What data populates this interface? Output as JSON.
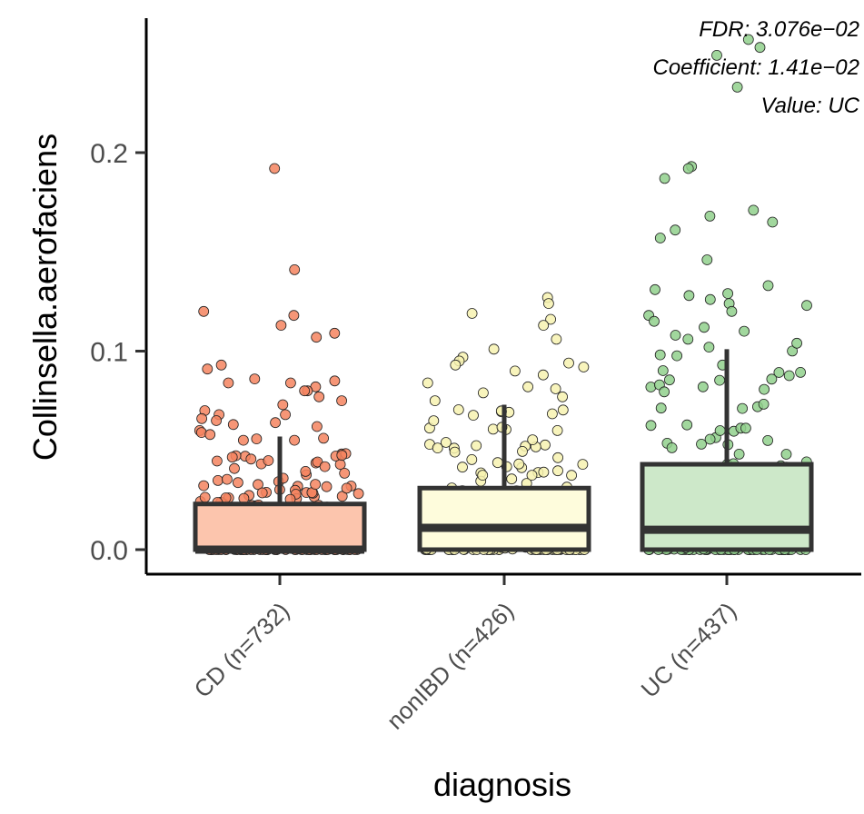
{
  "chart_data": {
    "type": "boxplot",
    "title": "",
    "xlabel": "diagnosis",
    "ylabel": "Collinsella.aerofaciens",
    "ylim": [
      -0.012,
      0.268
    ],
    "yticks": [
      0.0,
      0.1,
      0.2
    ],
    "ytick_labels": [
      "0.0",
      "0.1",
      "0.2"
    ],
    "annotations": [
      {
        "label": "FDR: 3.076e−02"
      },
      {
        "label": "Coefficient: 1.41e−02"
      },
      {
        "label": "Value: UC"
      }
    ],
    "groups": [
      {
        "name": "CD (n=732)",
        "fill": "#fcc5ad",
        "point_color": "#f4845f",
        "stats": {
          "min": 0.0,
          "q1": 0.0,
          "median": 0.0,
          "q3": 0.023,
          "max": 0.057
        },
        "outliers": [
          0.192,
          0.141,
          0.12,
          0.118,
          0.113,
          0.109,
          0.107,
          0.093,
          0.091,
          0.086,
          0.085,
          0.084,
          0.084,
          0.082,
          0.08,
          0.08,
          0.077,
          0.075,
          0.073,
          0.07,
          0.068,
          0.068,
          0.066,
          0.065,
          0.064,
          0.063,
          0.062,
          0.06,
          0.059,
          0.058
        ],
        "n_points": 300
      },
      {
        "name": "nonIBD (n=426)",
        "fill": "#fefcdc",
        "point_color": "#f7f2b0",
        "stats": {
          "min": 0.0,
          "q1": 0.0,
          "median": 0.011,
          "q3": 0.031,
          "max": 0.073
        },
        "outliers": [
          0.127,
          0.124,
          0.119,
          0.116,
          0.113,
          0.106,
          0.101,
          0.097,
          0.095,
          0.094,
          0.093,
          0.092,
          0.09,
          0.088,
          0.084,
          0.082,
          0.081,
          0.079,
          0.077,
          0.075
        ],
        "n_points": 240
      },
      {
        "name": "UC (n=437)",
        "fill": "#cde8c9",
        "point_color": "#90d08c",
        "stats": {
          "min": 0.0,
          "q1": 0.0,
          "median": 0.01,
          "q3": 0.043,
          "max": 0.101
        },
        "outliers": [
          0.257,
          0.253,
          0.249,
          0.233,
          0.193,
          0.192,
          0.187,
          0.171,
          0.168,
          0.165,
          0.161,
          0.157,
          0.146,
          0.133,
          0.131,
          0.129,
          0.128,
          0.126,
          0.124,
          0.123,
          0.12,
          0.118,
          0.115,
          0.112,
          0.11,
          0.108,
          0.106,
          0.104,
          0.102
        ],
        "n_points": 260
      }
    ]
  }
}
